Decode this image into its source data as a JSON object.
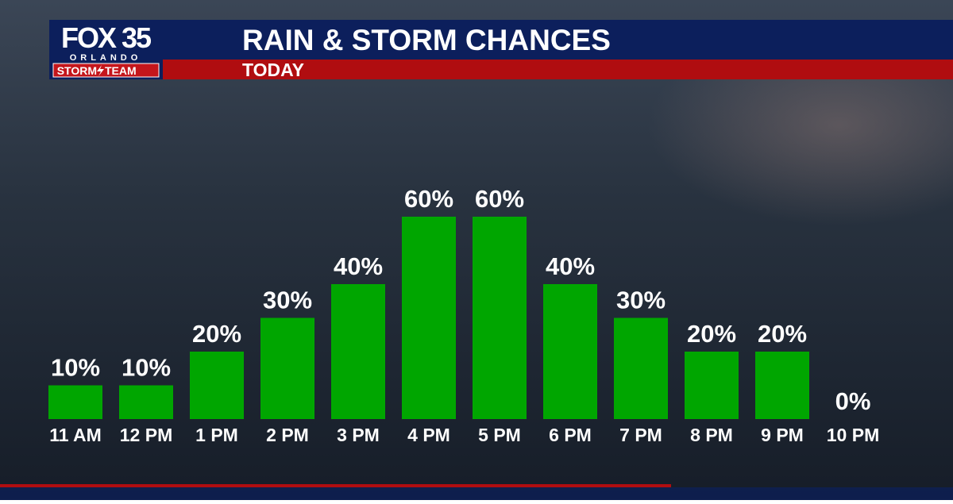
{
  "logo": {
    "brand": "FOX 35",
    "city": "ORLANDO",
    "team": [
      "STORM",
      "TEAM"
    ]
  },
  "chart_data": {
    "type": "bar",
    "title": "RAIN & STORM CHANCES",
    "subtitle": "TODAY",
    "categories": [
      "11 AM",
      "12 PM",
      "1 PM",
      "2 PM",
      "3 PM",
      "4 PM",
      "5 PM",
      "6 PM",
      "7 PM",
      "8 PM",
      "9 PM",
      "10 PM"
    ],
    "values": [
      10,
      10,
      20,
      30,
      40,
      60,
      60,
      40,
      30,
      20,
      20,
      0
    ],
    "value_labels": [
      "10%",
      "10%",
      "20%",
      "30%",
      "40%",
      "60%",
      "60%",
      "40%",
      "30%",
      "20%",
      "20%",
      "0%"
    ],
    "color": "#00a600"
  }
}
